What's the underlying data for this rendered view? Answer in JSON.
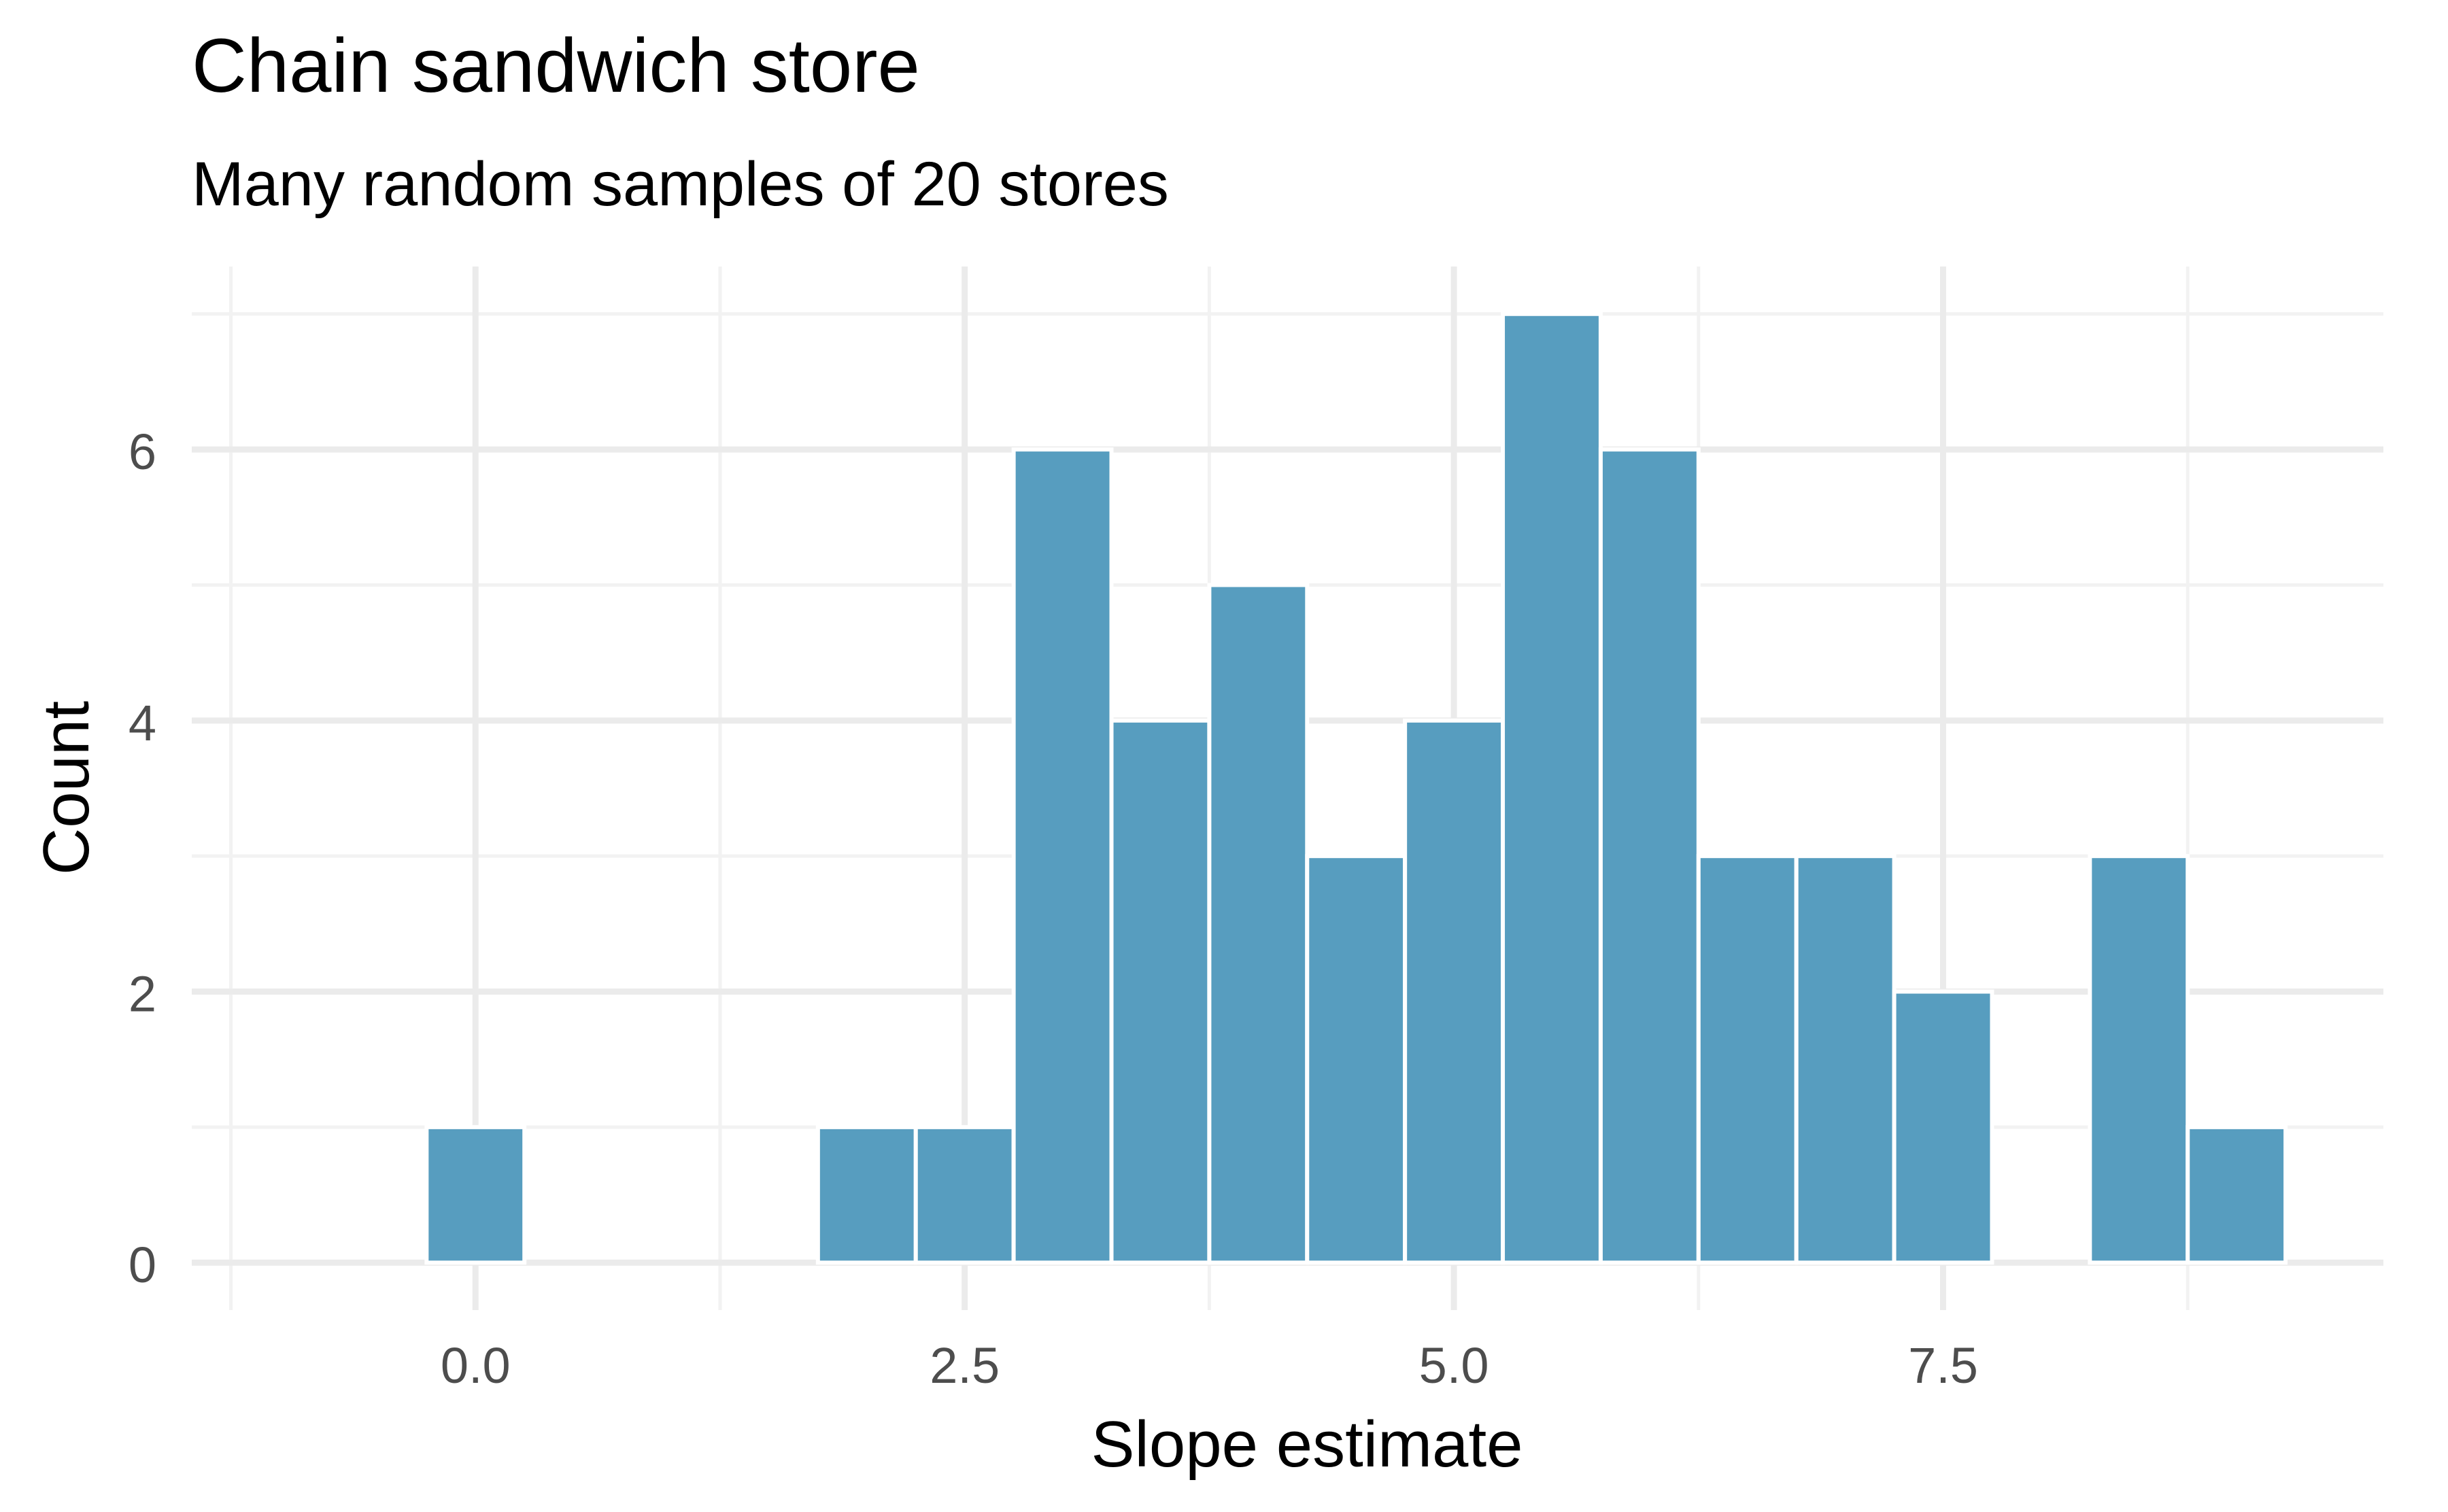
{
  "chart_data": {
    "type": "bar",
    "title": "Chain sandwich store",
    "subtitle": "Many random samples of 20 stores",
    "xlabel": "Slope estimate",
    "ylabel": "Count",
    "bin_width": 0.5,
    "bins": [
      {
        "x": 0.0,
        "count": 1
      },
      {
        "x": 0.5,
        "count": 0
      },
      {
        "x": 1.0,
        "count": 0
      },
      {
        "x": 1.5,
        "count": 0
      },
      {
        "x": 2.0,
        "count": 1
      },
      {
        "x": 2.5,
        "count": 1
      },
      {
        "x": 3.0,
        "count": 6
      },
      {
        "x": 3.5,
        "count": 4
      },
      {
        "x": 4.0,
        "count": 5
      },
      {
        "x": 4.5,
        "count": 3
      },
      {
        "x": 5.0,
        "count": 4
      },
      {
        "x": 5.5,
        "count": 7
      },
      {
        "x": 6.0,
        "count": 6
      },
      {
        "x": 6.5,
        "count": 3
      },
      {
        "x": 7.0,
        "count": 3
      },
      {
        "x": 7.5,
        "count": 2
      },
      {
        "x": 8.0,
        "count": 0
      },
      {
        "x": 8.5,
        "count": 3
      },
      {
        "x": 9.0,
        "count": 1
      }
    ],
    "xlim": [
      -1.45,
      9.75
    ],
    "ylim": [
      -0.35,
      7.35
    ],
    "x_ticks": [
      0.0,
      2.5,
      5.0,
      7.5
    ],
    "x_tick_labels": [
      "0.0",
      "2.5",
      "5.0",
      "7.5"
    ],
    "y_ticks": [
      0,
      2,
      4,
      6
    ],
    "y_tick_labels": [
      "0",
      "2",
      "4",
      "6"
    ],
    "grid": true,
    "colors": {
      "bar_fill": "#579dbf",
      "bar_outline": "#ffffff",
      "grid_major": "#ebebeb",
      "grid_minor": "#f2f2f2",
      "tick_text": "#4d4d4d",
      "title_text": "#000000"
    }
  }
}
